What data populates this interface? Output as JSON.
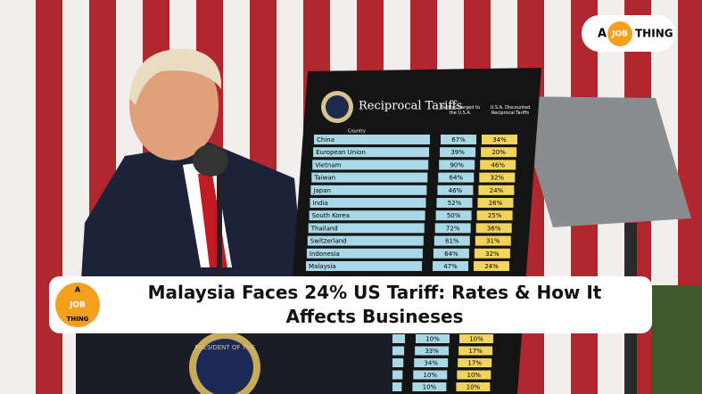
{
  "logo": {
    "a": "A",
    "job": "JOB",
    "thing": "THING"
  },
  "banner": {
    "title": "Malaysia Faces 24% US Tariff: Rates & How It Affects Busineses"
  },
  "board": {
    "title": "Reciprocal Tariffs",
    "country_header": "Country",
    "charged_header": "Tariffs Charged to the U.S.A.",
    "reciprocal_header": "U.S.A. Discounted Reciprocal Tariffs",
    "rows": [
      [
        "China",
        "67%",
        "34%"
      ],
      [
        "European Union",
        "39%",
        "20%"
      ],
      [
        "Vietnam",
        "90%",
        "46%"
      ],
      [
        "Taiwan",
        "64%",
        "32%"
      ],
      [
        "Japan",
        "46%",
        "24%"
      ],
      [
        "India",
        "52%",
        "26%"
      ],
      [
        "South Korea",
        "50%",
        "25%"
      ],
      [
        "Thailand",
        "72%",
        "36%"
      ],
      [
        "Switzerland",
        "61%",
        "31%"
      ],
      [
        "Indonesia",
        "64%",
        "32%"
      ],
      [
        "Malaysia",
        "47%",
        "24%"
      ]
    ],
    "lower_rows": [
      [
        "10%",
        "10%"
      ],
      [
        "33%",
        "17%"
      ],
      [
        "34%",
        "17%"
      ],
      [
        "10%",
        "10%"
      ],
      [
        "10%",
        "10%"
      ]
    ]
  },
  "podium": {
    "seal_text": "PRESIDENT OF THE"
  }
}
